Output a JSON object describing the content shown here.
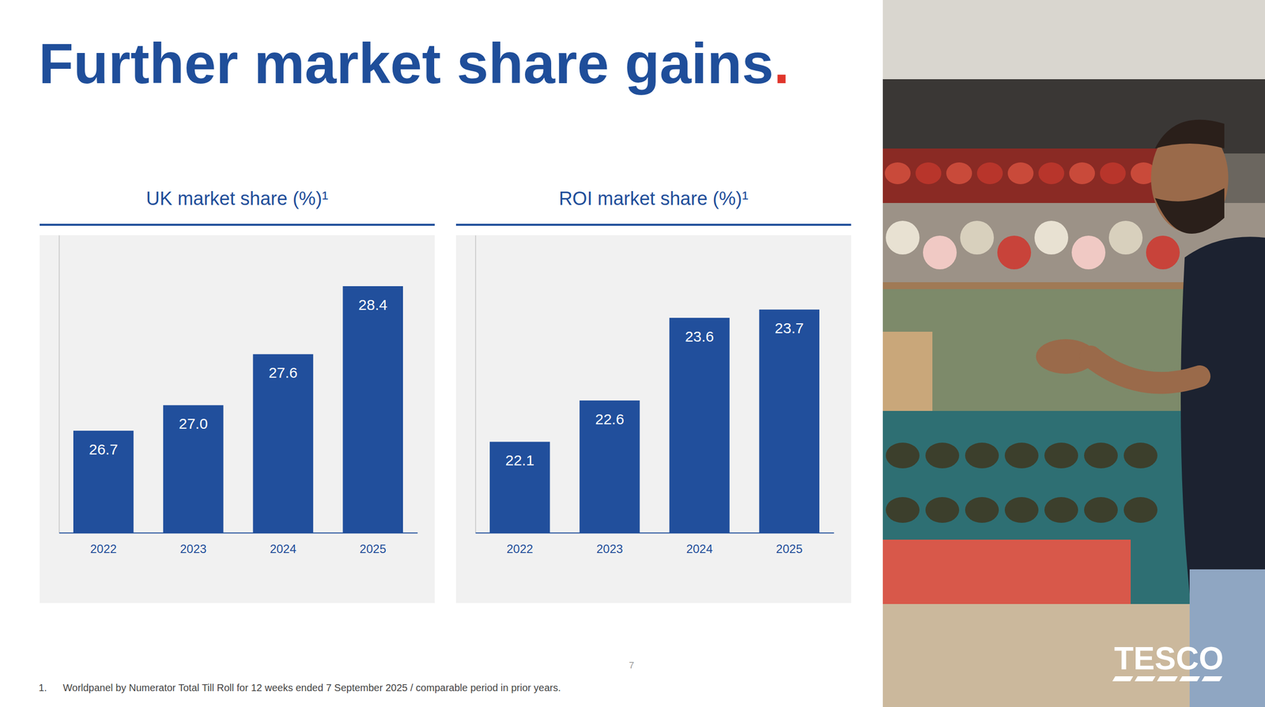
{
  "page": {
    "title": "Further market share gains",
    "title_mark": ".",
    "footnote_number": "1.",
    "footnote": "Worldpanel by Numerator Total Till Roll for 12 weeks ended 7 September 2025 / comparable period in prior years.",
    "page_number": "7",
    "logo": "TESCO"
  },
  "chart_data": [
    {
      "type": "bar",
      "title": "UK market share (%)¹",
      "categories": [
        "2022",
        "2023",
        "2024",
        "2025"
      ],
      "values": [
        26.7,
        27.0,
        27.6,
        28.4
      ],
      "value_labels": [
        "26.7",
        "27.0",
        "27.6",
        "28.4"
      ],
      "color": "#214f9c",
      "ylim": [
        25.5,
        29
      ],
      "grid": false,
      "data_labels": true,
      "tick_labels": "x"
    },
    {
      "type": "bar",
      "title": "ROI market share (%)¹",
      "categories": [
        "2022",
        "2023",
        "2024",
        "2025"
      ],
      "values": [
        22.1,
        22.6,
        23.6,
        23.7
      ],
      "value_labels": [
        "22.1",
        "22.6",
        "23.6",
        "23.7"
      ],
      "color": "#214f9c",
      "ylim": [
        21,
        24.6
      ],
      "grid": false,
      "data_labels": true,
      "tick_labels": "x"
    }
  ]
}
